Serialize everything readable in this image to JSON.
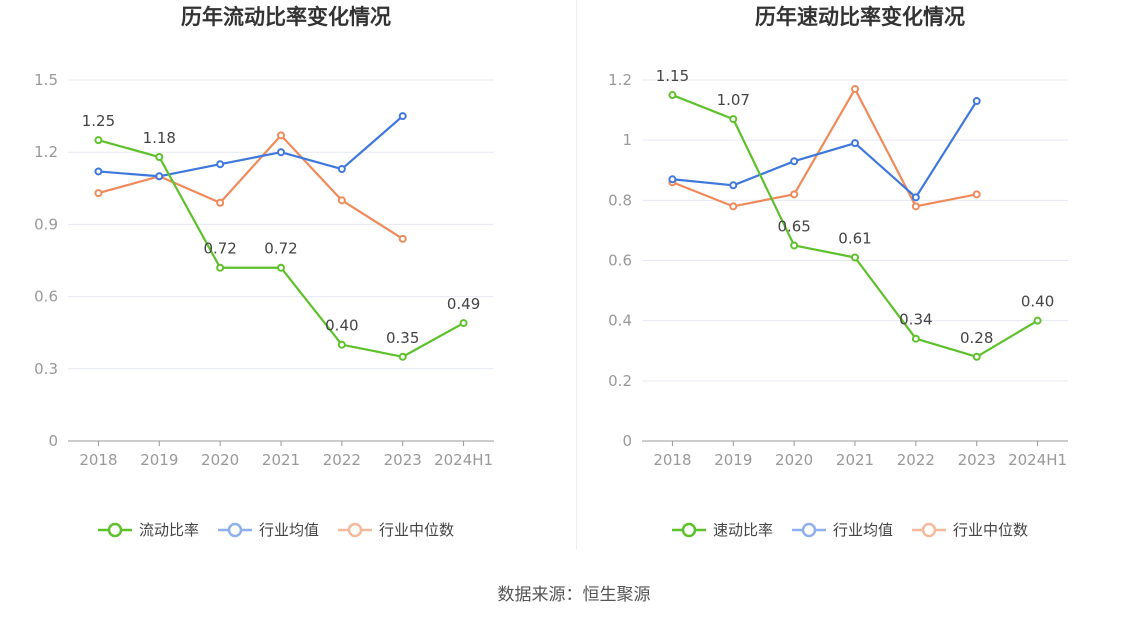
{
  "colors": {
    "main": "#5ec12c",
    "avg": "#3f78dd",
    "median": "#f08a5a",
    "avg_legend": "#8fb0ec",
    "median_legend": "#f5b99c"
  },
  "source_text": "数据来源：恒生聚源",
  "chart_data": [
    {
      "type": "line",
      "title": "历年流动比率变化情况",
      "categories": [
        "2018",
        "2019",
        "2020",
        "2021",
        "2022",
        "2023",
        "2024H1"
      ],
      "ylim": [
        0,
        1.5
      ],
      "yticks": [
        0,
        0.3,
        0.6,
        0.9,
        1.2,
        1.5
      ],
      "ytick_labels": [
        "0",
        "0.3",
        "0.6",
        "0.9",
        "1.2",
        "1.5"
      ],
      "grid": true,
      "legend": "bottom",
      "series": [
        {
          "name": "流动比率",
          "key": "main",
          "values": [
            1.25,
            1.18,
            0.72,
            0.72,
            0.4,
            0.35,
            0.49
          ],
          "labels": [
            "1.25",
            "1.18",
            "0.72",
            "0.72",
            "0.40",
            "0.35",
            "0.49"
          ]
        },
        {
          "name": "行业均值",
          "key": "avg",
          "values": [
            1.12,
            1.1,
            1.15,
            1.2,
            1.13,
            1.35,
            null
          ]
        },
        {
          "name": "行业中位数",
          "key": "median",
          "values": [
            1.03,
            1.1,
            0.99,
            1.27,
            1.0,
            0.84,
            null
          ]
        }
      ]
    },
    {
      "type": "line",
      "title": "历年速动比率变化情况",
      "categories": [
        "2018",
        "2019",
        "2020",
        "2021",
        "2022",
        "2023",
        "2024H1"
      ],
      "ylim": [
        0,
        1.2
      ],
      "yticks": [
        0,
        0.2,
        0.4,
        0.6,
        0.8,
        1.0,
        1.2
      ],
      "ytick_labels": [
        "0",
        "0.2",
        "0.4",
        "0.6",
        "0.8",
        "1",
        "1.2"
      ],
      "grid": true,
      "legend": "bottom",
      "series": [
        {
          "name": "速动比率",
          "key": "main",
          "values": [
            1.15,
            1.07,
            0.65,
            0.61,
            0.34,
            0.28,
            0.4
          ],
          "labels": [
            "1.15",
            "1.07",
            "0.65",
            "0.61",
            "0.34",
            "0.28",
            "0.40"
          ]
        },
        {
          "name": "行业均值",
          "key": "avg",
          "values": [
            0.87,
            0.85,
            0.93,
            0.99,
            0.81,
            1.13,
            null
          ]
        },
        {
          "name": "行业中位数",
          "key": "median",
          "values": [
            0.86,
            0.78,
            0.82,
            1.17,
            0.78,
            0.82,
            null
          ]
        }
      ]
    }
  ]
}
